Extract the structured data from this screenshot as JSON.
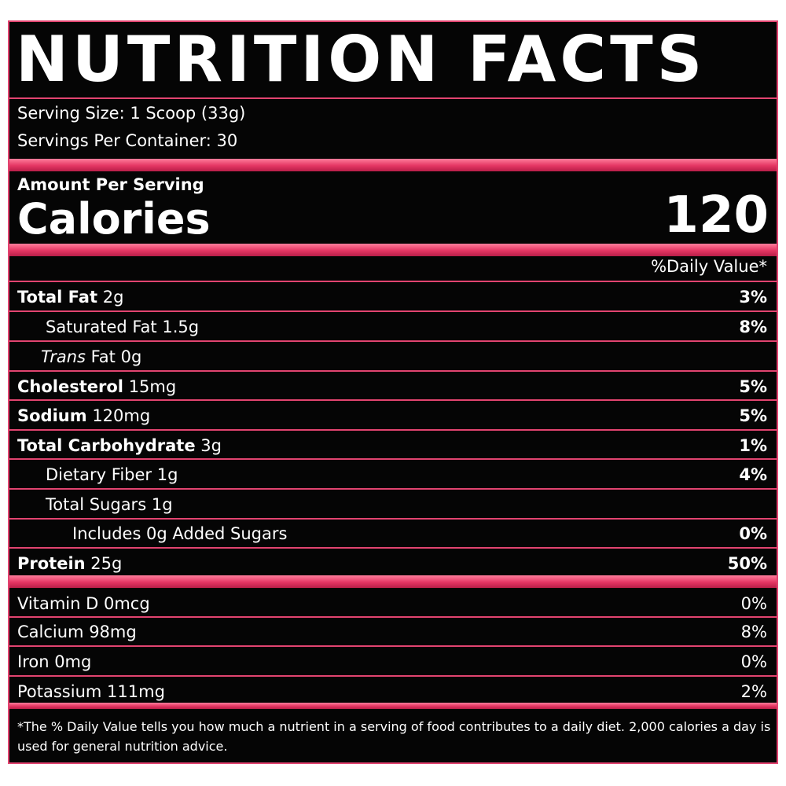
{
  "title": "NUTRITION FACTS",
  "serving": {
    "size": "Serving Size: 1 Scoop (33g)",
    "per_container": "Servings Per Container: 30"
  },
  "calories": {
    "amount_label": "Amount Per Serving",
    "label": "Calories",
    "value": "120"
  },
  "daily_value_header": "%Daily Value*",
  "nutrients": [
    {
      "name": "Total Fat",
      "amount": "2g",
      "dv": "3%"
    },
    {
      "name": "Saturated Fat",
      "amount": "1.5g",
      "dv": "8%"
    },
    {
      "name_italic": "Trans",
      "name": "Fat",
      "amount": "0g"
    },
    {
      "name": "Cholesterol",
      "amount": "15mg",
      "dv": "5%"
    },
    {
      "name": "Sodium",
      "amount": "120mg",
      "dv": "5%"
    },
    {
      "name": "Total Carbohydrate",
      "amount": "3g",
      "dv": "1%"
    },
    {
      "name": "Dietary Fiber",
      "amount": "1g",
      "dv": "4%"
    },
    {
      "name": "Total Sugars",
      "amount": "1g"
    },
    {
      "name": "Includes 0g Added Sugars",
      "dv": "0%"
    },
    {
      "name": "Protein",
      "amount": "25g",
      "dv": "50%"
    }
  ],
  "vitamins": [
    {
      "name": "Vitamin D 0mcg",
      "dv": "0%"
    },
    {
      "name": "Calcium 98mg",
      "dv": "8%"
    },
    {
      "name": "Iron 0mg",
      "dv": "0%"
    },
    {
      "name": "Potassium 111mg",
      "dv": "2%"
    }
  ],
  "footnote": "*The % Daily Value tells you how much a nutrient in a serving of food contributes to a daily diet. 2,000 calories a day is used for general nutrition advice."
}
